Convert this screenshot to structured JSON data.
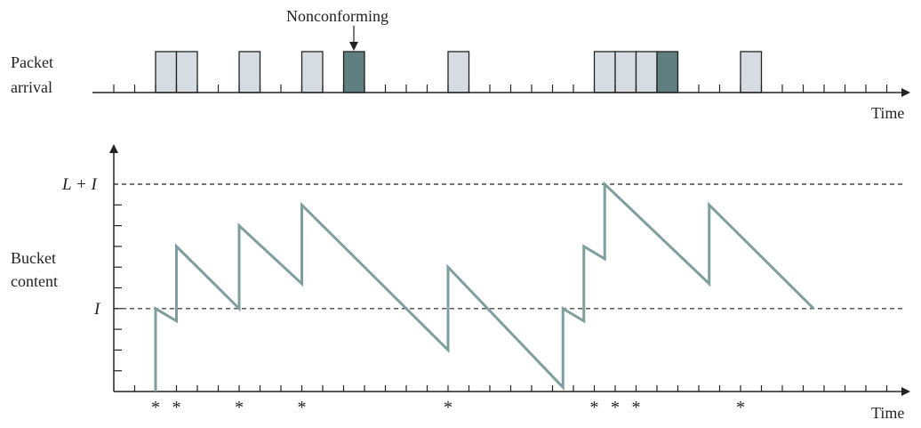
{
  "labels": {
    "packet_arrival_line1": "Packet",
    "packet_arrival_line2": "arrival",
    "bucket_content_line1": "Bucket",
    "bucket_content_line2": "content",
    "time_top": "Time",
    "time_bottom": "Time",
    "nonconforming": "Nonconforming",
    "level_L_plus_I": "L + I",
    "level_I": "I",
    "asterisk": "*"
  },
  "colors": {
    "conforming_fill": "#d6dde2",
    "nonconforming_fill": "#5e7e80",
    "curve": "#7f9f9c",
    "axis": "#222222"
  },
  "timeline": {
    "tick_slots": 37,
    "packets": [
      {
        "slot": 2,
        "conforming": true
      },
      {
        "slot": 3,
        "conforming": true
      },
      {
        "slot": 6,
        "conforming": true
      },
      {
        "slot": 9,
        "conforming": true
      },
      {
        "slot": 11,
        "conforming": false
      },
      {
        "slot": 16,
        "conforming": true
      },
      {
        "slot": 23,
        "conforming": true
      },
      {
        "slot": 24,
        "conforming": true
      },
      {
        "slot": 25,
        "conforming": true
      },
      {
        "slot": 26,
        "conforming": false
      },
      {
        "slot": 30,
        "conforming": true
      }
    ],
    "asterisk_slots": [
      2,
      3,
      6,
      9,
      16,
      23,
      24,
      25,
      30
    ]
  },
  "bucket": {
    "unit_ticks": 9,
    "level_I": 4,
    "level_L_plus_I": 10,
    "path": [
      [
        2,
        0
      ],
      [
        2,
        4
      ],
      [
        3,
        3.4
      ],
      [
        3,
        7
      ],
      [
        6,
        4
      ],
      [
        6,
        8
      ],
      [
        9,
        5.2
      ],
      [
        9,
        9
      ],
      [
        16,
        2
      ],
      [
        16,
        6
      ],
      [
        21.5,
        0.2
      ],
      [
        21.5,
        4
      ],
      [
        22.5,
        3.4
      ],
      [
        22.5,
        7
      ],
      [
        23.5,
        6.4
      ],
      [
        23.5,
        10
      ],
      [
        28.5,
        5.2
      ],
      [
        28.5,
        9
      ],
      [
        33.5,
        4
      ]
    ]
  }
}
